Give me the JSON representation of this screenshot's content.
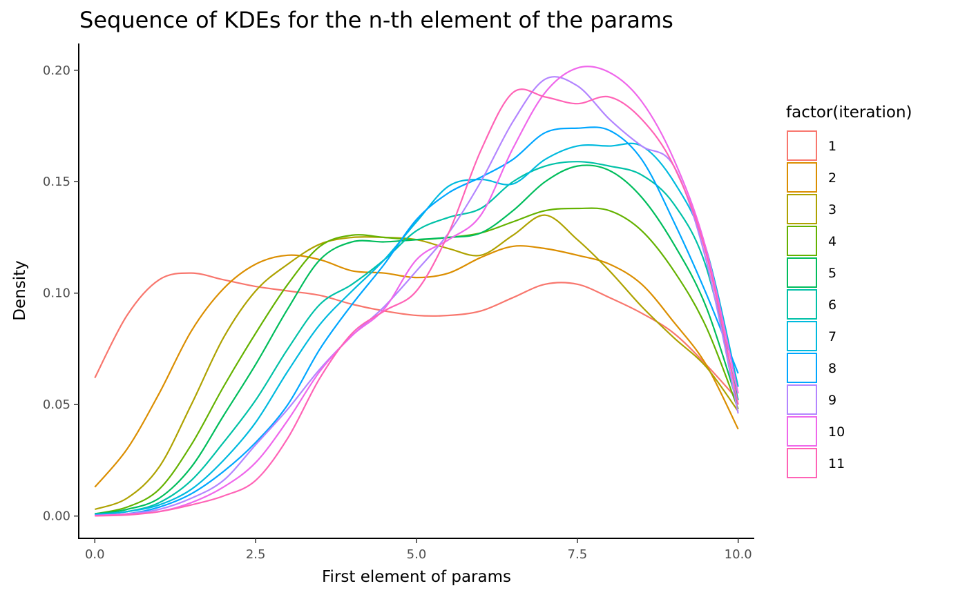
{
  "chart_data": {
    "type": "line",
    "title": "Sequence of KDEs for the n-th element of the params",
    "xlabel": "First element of params",
    "ylabel": "Density",
    "xlim": [
      -0.25,
      10.25
    ],
    "ylim": [
      -0.01,
      0.212
    ],
    "xticks": [
      0,
      2.5,
      5,
      7.5,
      10
    ],
    "xtick_labels": [
      "0.0",
      "2.5",
      "5.0",
      "7.5",
      "10.0"
    ],
    "yticks": [
      0,
      0.05,
      0.1,
      0.15,
      0.2
    ],
    "ytick_labels": [
      "0.00",
      "0.05",
      "0.10",
      "0.15",
      "0.20"
    ],
    "grid": false,
    "legend": {
      "title": "factor(iteration)",
      "position": "right"
    },
    "series": [
      {
        "name": "1",
        "color": "#F8766D",
        "x": [
          0,
          0.5,
          1,
          1.5,
          2,
          2.5,
          3,
          3.5,
          4,
          4.5,
          5,
          5.5,
          6,
          6.5,
          7,
          7.5,
          8,
          8.5,
          9,
          9.5,
          10
        ],
        "y": [
          0.062,
          0.09,
          0.106,
          0.109,
          0.106,
          0.103,
          0.101,
          0.099,
          0.095,
          0.092,
          0.09,
          0.09,
          0.092,
          0.098,
          0.104,
          0.104,
          0.098,
          0.091,
          0.082,
          0.068,
          0.052
        ]
      },
      {
        "name": "2",
        "color": "#DB8E00",
        "x": [
          0,
          0.5,
          1,
          1.5,
          2,
          2.5,
          3,
          3.5,
          4,
          4.5,
          5,
          5.5,
          6,
          6.5,
          7,
          7.5,
          8,
          8.5,
          9,
          9.5,
          10
        ],
        "y": [
          0.013,
          0.03,
          0.055,
          0.083,
          0.102,
          0.113,
          0.117,
          0.115,
          0.11,
          0.109,
          0.107,
          0.109,
          0.116,
          0.121,
          0.12,
          0.117,
          0.113,
          0.104,
          0.087,
          0.068,
          0.039
        ]
      },
      {
        "name": "3",
        "color": "#AEA200",
        "x": [
          0,
          0.5,
          1,
          1.5,
          2,
          2.5,
          3,
          3.5,
          4,
          4.5,
          5,
          5.5,
          6,
          6.5,
          7,
          7.5,
          8,
          8.5,
          9,
          9.5,
          10
        ],
        "y": [
          0.003,
          0.008,
          0.022,
          0.05,
          0.08,
          0.101,
          0.113,
          0.122,
          0.125,
          0.125,
          0.124,
          0.12,
          0.117,
          0.126,
          0.135,
          0.124,
          0.11,
          0.094,
          0.08,
          0.067,
          0.047
        ]
      },
      {
        "name": "4",
        "color": "#64B200",
        "x": [
          0,
          0.5,
          1,
          1.5,
          2,
          2.5,
          3,
          3.5,
          4,
          4.5,
          5,
          5.5,
          6,
          6.5,
          7,
          7.5,
          8,
          8.5,
          9,
          9.5,
          10
        ],
        "y": [
          0.001,
          0.004,
          0.012,
          0.032,
          0.058,
          0.082,
          0.104,
          0.121,
          0.126,
          0.125,
          0.124,
          0.125,
          0.127,
          0.132,
          0.137,
          0.138,
          0.137,
          0.128,
          0.11,
          0.085,
          0.048
        ]
      },
      {
        "name": "5",
        "color": "#00BD5C",
        "x": [
          0,
          0.5,
          1,
          1.5,
          2,
          2.5,
          3,
          3.5,
          4,
          4.5,
          5,
          5.5,
          6,
          6.5,
          7,
          7.5,
          8,
          8.5,
          9,
          9.5,
          10
        ],
        "y": [
          0.001,
          0.003,
          0.008,
          0.022,
          0.045,
          0.068,
          0.093,
          0.115,
          0.123,
          0.123,
          0.124,
          0.125,
          0.127,
          0.137,
          0.15,
          0.157,
          0.155,
          0.143,
          0.122,
          0.094,
          0.05
        ]
      },
      {
        "name": "6",
        "color": "#00C1A7",
        "x": [
          0,
          0.5,
          1,
          1.5,
          2,
          2.5,
          3,
          3.5,
          4,
          4.5,
          5,
          5.5,
          6,
          6.5,
          7,
          7.5,
          8,
          8.5,
          9,
          9.5,
          10
        ],
        "y": [
          0.001,
          0.002,
          0.006,
          0.016,
          0.033,
          0.052,
          0.075,
          0.095,
          0.104,
          0.115,
          0.128,
          0.134,
          0.138,
          0.15,
          0.157,
          0.159,
          0.157,
          0.153,
          0.14,
          0.112,
          0.052
        ]
      },
      {
        "name": "7",
        "color": "#00BADE",
        "x": [
          0,
          0.5,
          1,
          1.5,
          2,
          2.5,
          3,
          3.5,
          4,
          4.5,
          5,
          5.5,
          6,
          6.5,
          7,
          7.5,
          8,
          8.5,
          9,
          9.5,
          10
        ],
        "y": [
          0.0005,
          0.002,
          0.005,
          0.012,
          0.025,
          0.042,
          0.065,
          0.086,
          0.101,
          0.115,
          0.132,
          0.148,
          0.151,
          0.149,
          0.16,
          0.166,
          0.166,
          0.166,
          0.15,
          0.12,
          0.058
        ]
      },
      {
        "name": "8",
        "color": "#00A6FF",
        "x": [
          0,
          0.5,
          1,
          1.5,
          2,
          2.5,
          3,
          3.5,
          4,
          4.5,
          5,
          5.5,
          6,
          6.5,
          7,
          7.5,
          8,
          8.5,
          9,
          9.5,
          10
        ],
        "y": [
          0.0005,
          0.001,
          0.004,
          0.01,
          0.02,
          0.033,
          0.05,
          0.075,
          0.095,
          0.113,
          0.133,
          0.145,
          0.152,
          0.16,
          0.172,
          0.174,
          0.173,
          0.16,
          0.132,
          0.1,
          0.064
        ]
      },
      {
        "name": "9",
        "color": "#B385FF",
        "x": [
          0,
          0.5,
          1,
          1.5,
          2,
          2.5,
          3,
          3.5,
          4,
          4.5,
          5,
          5.5,
          6,
          6.5,
          7,
          7.5,
          8,
          8.5,
          9,
          9.5,
          10
        ],
        "y": [
          0.0003,
          0.001,
          0.003,
          0.008,
          0.016,
          0.032,
          0.048,
          0.066,
          0.081,
          0.094,
          0.11,
          0.127,
          0.15,
          0.177,
          0.196,
          0.193,
          0.178,
          0.166,
          0.157,
          0.115,
          0.046
        ]
      },
      {
        "name": "10",
        "color": "#EF67EB",
        "x": [
          0,
          0.5,
          1,
          1.5,
          2,
          2.5,
          3,
          3.5,
          4,
          4.5,
          5,
          5.5,
          6,
          6.5,
          7,
          7.5,
          8,
          8.5,
          9,
          9.5,
          10
        ],
        "y": [
          0.0002,
          0.0008,
          0.002,
          0.006,
          0.013,
          0.024,
          0.043,
          0.065,
          0.081,
          0.093,
          0.115,
          0.124,
          0.135,
          0.165,
          0.19,
          0.201,
          0.199,
          0.186,
          0.16,
          0.12,
          0.055
        ]
      },
      {
        "name": "11",
        "color": "#FF63B6",
        "x": [
          0,
          0.5,
          1,
          1.5,
          2,
          2.5,
          3,
          3.5,
          4,
          4.5,
          5,
          5.5,
          6,
          6.5,
          7,
          7.5,
          8,
          8.5,
          9,
          9.5,
          10
        ],
        "y": [
          0.0001,
          0.0005,
          0.002,
          0.005,
          0.009,
          0.016,
          0.035,
          0.062,
          0.082,
          0.092,
          0.101,
          0.127,
          0.164,
          0.19,
          0.188,
          0.185,
          0.188,
          0.178,
          0.157,
          0.118,
          0.05
        ]
      }
    ]
  }
}
